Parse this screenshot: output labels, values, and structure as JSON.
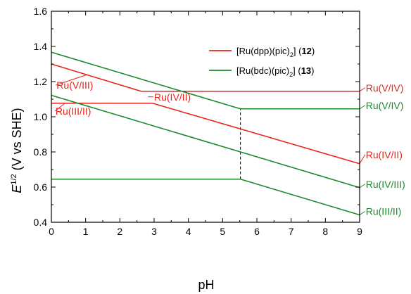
{
  "colors": {
    "red": "#e8231a",
    "green": "#1c8a2e",
    "axis": "#000000",
    "guide": "#000000"
  },
  "chart_data": {
    "type": "line",
    "xlabel": "pH",
    "ylabel_main": "E",
    "ylabel_sup": "1/2",
    "ylabel_rest": " (V vs SHE)",
    "xlim": [
      0,
      9
    ],
    "ylim": [
      0.4,
      1.6
    ],
    "xticks": [
      "0",
      "1",
      "2",
      "3",
      "4",
      "5",
      "6",
      "7",
      "8",
      "9"
    ],
    "yticks": [
      "0.4",
      "0.6",
      "0.8",
      "1.0",
      "1.2",
      "1.4",
      "1.6"
    ],
    "legend": [
      {
        "pre": "[Ru(dpp)(pic)",
        "sub": "2",
        "post": "] (",
        "bold": "12",
        "end": ")",
        "color": "red"
      },
      {
        "pre": "[Ru(bdc)(pic)",
        "sub": "2",
        "post": "] (",
        "bold": "13",
        "end": ")",
        "color": "green"
      }
    ],
    "series": [
      {
        "color": "red",
        "x": [
          0,
          2.62
        ],
        "y": [
          1.3,
          1.145
        ]
      },
      {
        "color": "red",
        "x": [
          2.62,
          9
        ],
        "y": [
          1.145,
          1.145
        ]
      },
      {
        "color": "red",
        "x": [
          0,
          2.95
        ],
        "y": [
          1.077,
          1.077
        ]
      },
      {
        "color": "red",
        "x": [
          2.95,
          9
        ],
        "y": [
          1.077,
          0.733
        ]
      },
      {
        "color": "green",
        "x": [
          0,
          5.52
        ],
        "y": [
          1.367,
          1.045
        ]
      },
      {
        "color": "green",
        "x": [
          5.52,
          9
        ],
        "y": [
          1.045,
          1.045
        ]
      },
      {
        "color": "green",
        "x": [
          0,
          9
        ],
        "y": [
          1.122,
          0.597
        ]
      },
      {
        "color": "green",
        "x": [
          0,
          5.52
        ],
        "y": [
          0.645,
          0.645
        ]
      },
      {
        "color": "green",
        "x": [
          5.52,
          9
        ],
        "y": [
          0.645,
          0.442
        ]
      }
    ],
    "vertical_guide": {
      "x": 5.52,
      "y": [
        0.645,
        1.045
      ]
    },
    "annotations": [
      {
        "text": "Ru(V/III)",
        "color": "red",
        "x": 0.15,
        "y": 1.16,
        "lx": 1.02,
        "ly": 1.238
      },
      {
        "text": "Ru(IV/II)",
        "color": "red",
        "x": 3.0,
        "y": 1.093,
        "lx": 2.82,
        "ly": 1.113
      },
      {
        "text": "Ru(III/II)",
        "color": "red",
        "x": 0.12,
        "y": 1.012,
        "lx": 0.4,
        "ly": 1.077
      },
      {
        "text": "Ru(V/IV)",
        "color": "red",
        "x": 9.18,
        "y": 1.145,
        "lx": 9.0,
        "ly": 1.145
      },
      {
        "text": "Ru(V/IV)",
        "color": "green",
        "x": 9.18,
        "y": 1.045,
        "lx": 9.0,
        "ly": 1.045
      },
      {
        "text": "Ru(IV/II)",
        "color": "red",
        "x": 9.18,
        "y": 0.765,
        "lx": 9.0,
        "ly": 0.733
      },
      {
        "text": "Ru(IV/III)",
        "color": "green",
        "x": 9.18,
        "y": 0.597,
        "lx": 9.0,
        "ly": 0.597
      },
      {
        "text": "Ru(III/II)",
        "color": "green",
        "x": 9.18,
        "y": 0.442,
        "lx": 9.0,
        "ly": 0.442
      }
    ]
  }
}
